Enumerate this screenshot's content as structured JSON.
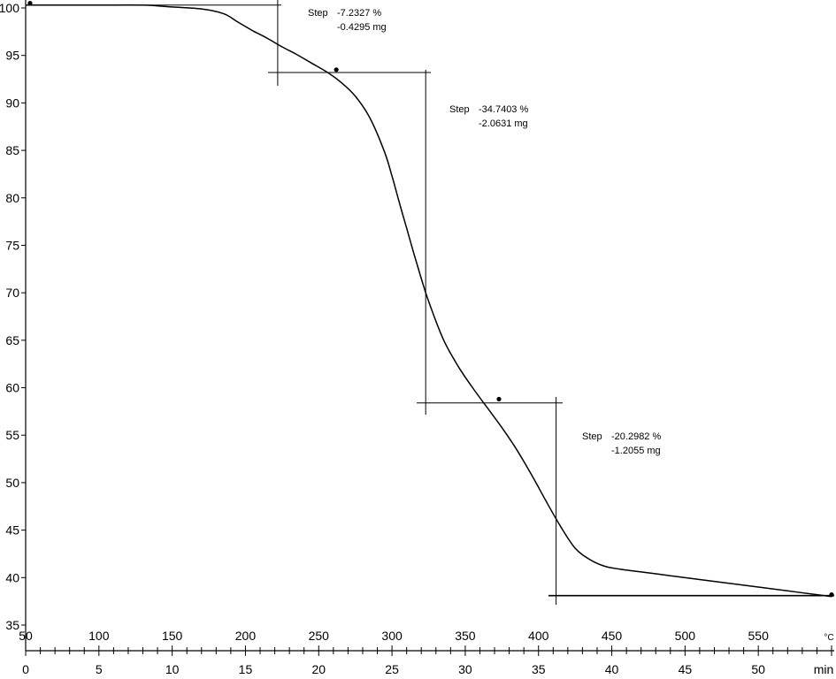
{
  "chart_data": {
    "type": "line",
    "title": "",
    "xlabel": "",
    "ylabel": "",
    "grid": false,
    "x_time": {
      "unit": "min",
      "range": [
        0,
        55
      ],
      "tick_labels": [
        "0",
        "5",
        "10",
        "15",
        "20",
        "25",
        "30",
        "35",
        "40",
        "45",
        "50"
      ]
    },
    "x_temperature": {
      "unit": "°C",
      "range": [
        50,
        600
      ],
      "tick_labels": [
        "50",
        "100",
        "150",
        "200",
        "250",
        "300",
        "350",
        "400",
        "450",
        "500",
        "550"
      ]
    },
    "y": {
      "range": [
        35,
        100
      ],
      "tick_labels": [
        "35",
        "40",
        "45",
        "50",
        "55",
        "60",
        "65",
        "70",
        "75",
        "80",
        "85",
        "90",
        "95",
        "100"
      ]
    },
    "series": [
      {
        "x_min": [
          0,
          2,
          5,
          8,
          10,
          12,
          13.5,
          14.5,
          15.5,
          16.5,
          17.5,
          18.5,
          19.5,
          20.5,
          21.5,
          22.5,
          23.5,
          24.5,
          25,
          25.5,
          26,
          26.5,
          27,
          27.5,
          28.5,
          29.5,
          30.5,
          31.5,
          32.5,
          33.5,
          34.5,
          35.5,
          36.5,
          37.5,
          38.5,
          39.5,
          40.5,
          42,
          44,
          46,
          48,
          50,
          52,
          54,
          55
        ],
        "y": [
          100.3,
          100.3,
          100.3,
          100.3,
          100.1,
          99.9,
          99.4,
          98.5,
          97.6,
          96.8,
          95.9,
          95.1,
          94.2,
          93.3,
          92.2,
          90.7,
          88.4,
          84.8,
          82.3,
          79.5,
          76.8,
          74.1,
          71.5,
          69.1,
          65.1,
          62.3,
          60.0,
          57.9,
          55.8,
          53.5,
          50.9,
          48.1,
          45.4,
          43.1,
          41.9,
          41.2,
          40.9,
          40.6,
          40.2,
          39.8,
          39.4,
          39.0,
          38.6,
          38.2,
          38.0
        ]
      }
    ],
    "markers": [
      {
        "x_min": 0.3,
        "y": 100.5
      },
      {
        "x_min": 21.2,
        "y": 93.5
      },
      {
        "x_min": 32.3,
        "y": 58.8
      },
      {
        "x_min": 55.0,
        "y": 38.2
      }
    ],
    "steps": [
      {
        "label": "Step",
        "percent": "-7.2327 %",
        "mass": "-0.4295 mg",
        "upper_y": 100.3,
        "lower_y": 93.2,
        "split_x_min": 17.2
      },
      {
        "label": "Step",
        "percent": "-34.7403 %",
        "mass": "-2.0631 mg",
        "upper_y": 93.2,
        "lower_y": 58.4,
        "split_x_min": 27.3
      },
      {
        "label": "Step",
        "percent": "-20.2982 %",
        "mass": "-1.2055 mg",
        "upper_y": 58.4,
        "lower_y": 38.1,
        "split_x_min": 36.2
      }
    ]
  }
}
